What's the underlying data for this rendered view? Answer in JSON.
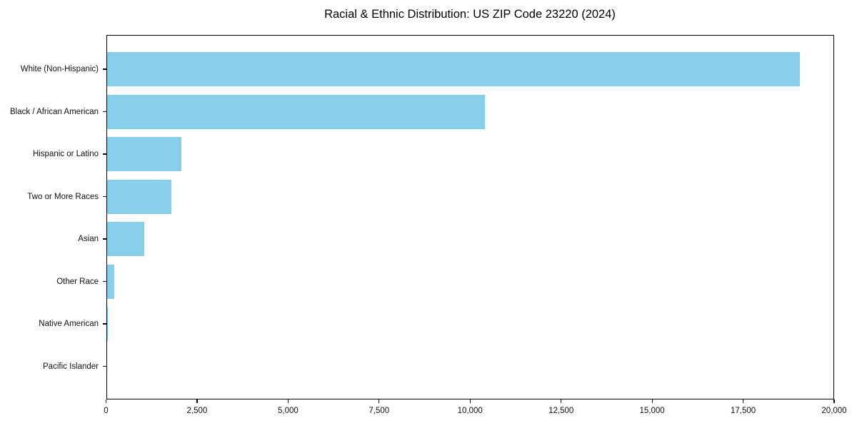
{
  "chart_data": {
    "type": "bar",
    "orientation": "horizontal",
    "title": "Racial & Ethnic Distribution: US ZIP Code 23220 (2024)",
    "categories": [
      "White (Non-Hispanic)",
      "Black / African American",
      "Hispanic or Latino",
      "Two or More Races",
      "Asian",
      "Other Race",
      "Native American",
      "Pacific Islander"
    ],
    "values": [
      19050,
      10400,
      2060,
      1790,
      1040,
      235,
      30,
      8
    ],
    "xlabel": "",
    "ylabel": "",
    "xlim": [
      0,
      20000
    ],
    "xticks": [
      0,
      2500,
      5000,
      7500,
      10000,
      12500,
      15000,
      17500,
      20000
    ],
    "xtick_labels": [
      "0",
      "2,500",
      "5,000",
      "7,500",
      "10,000",
      "12,500",
      "15,000",
      "17,500",
      "20,000"
    ],
    "bar_color": "#87CEEB",
    "grid": false,
    "legend": null
  },
  "colors": {
    "bar": "#87CEEB",
    "spine": "#000000",
    "text": "#111111",
    "background": "#FFFFFF"
  }
}
